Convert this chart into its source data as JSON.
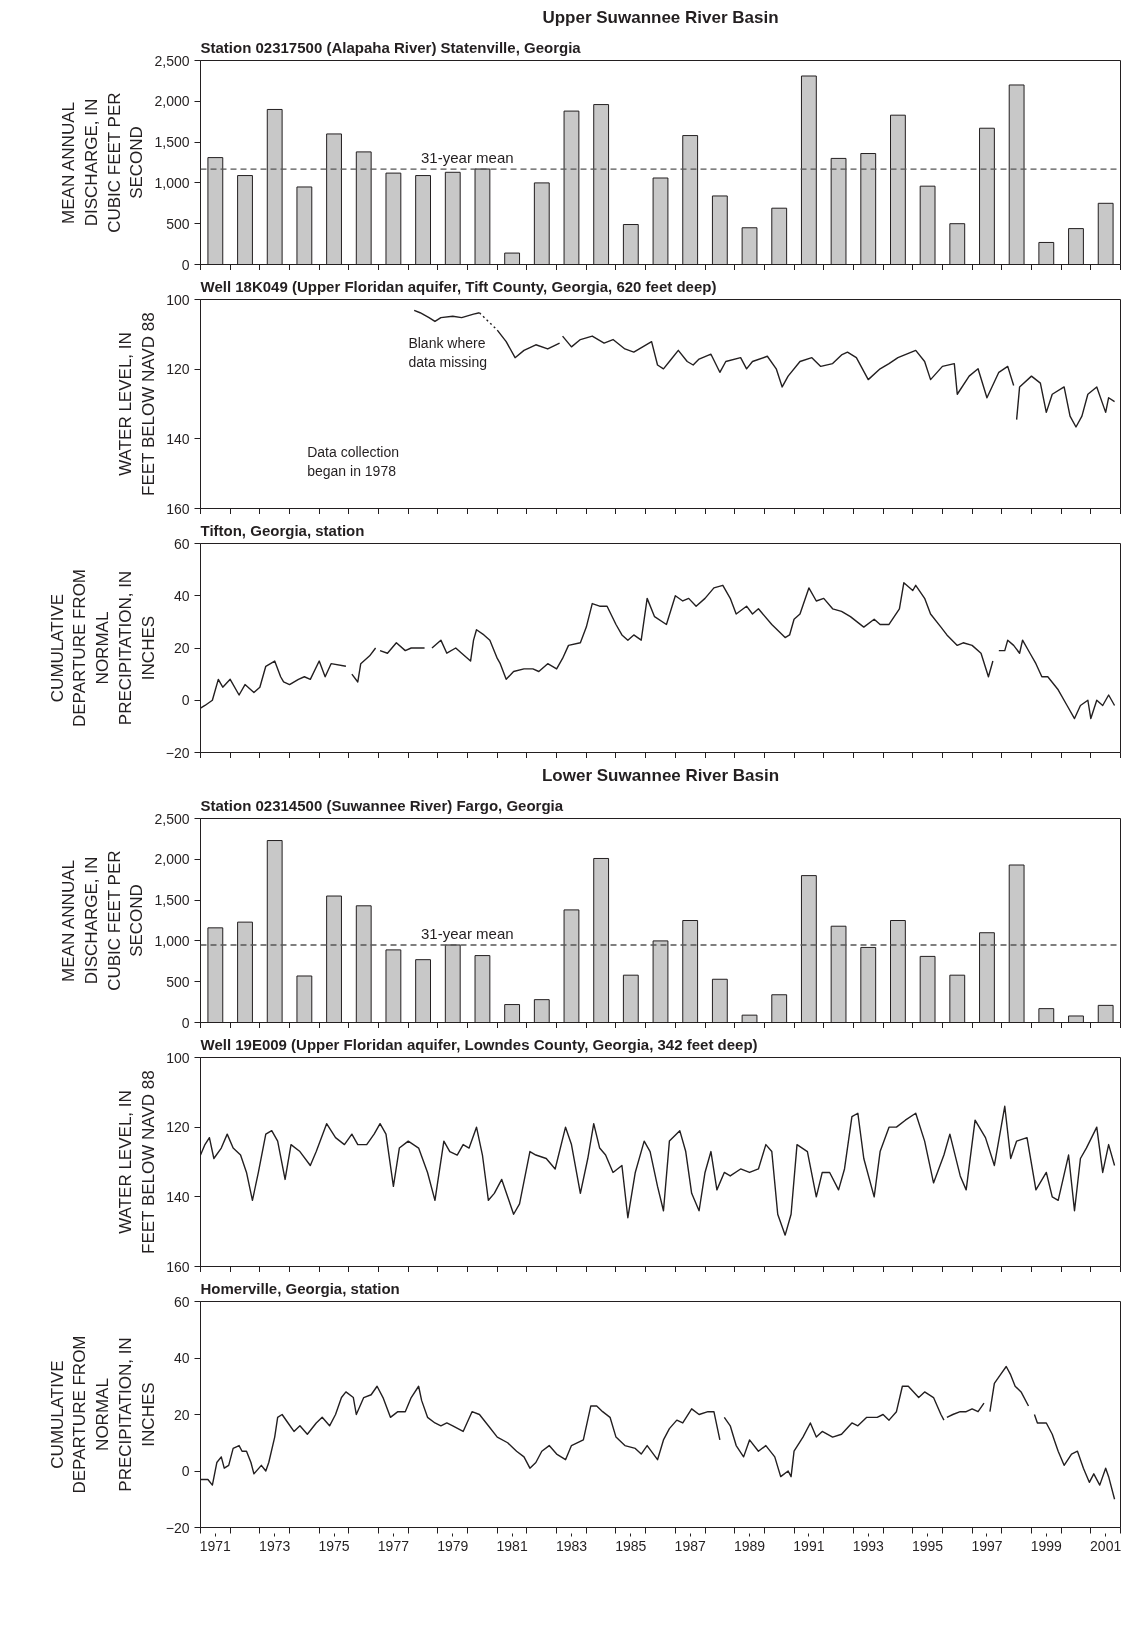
{
  "chart_data": [
    {
      "type": "bar",
      "title": "Upper Suwannee River Basin",
      "subtitle": "Station 02317500 (Alapaha River) Statenville, Georgia",
      "ylabel": "MEAN ANNUAL DISCHARGE, IN CUBIC FEET PER SECOND",
      "color": "#c8c8c8",
      "x": [
        1971,
        1972,
        1973,
        1974,
        1975,
        1976,
        1977,
        1978,
        1979,
        1980,
        1981,
        1982,
        1983,
        1984,
        1985,
        1986,
        1987,
        1988,
        1989,
        1990,
        1991,
        1992,
        1993,
        1994,
        1995,
        1996,
        1997,
        1998,
        1999,
        2000,
        2001
      ],
      "values": [
        1310,
        1090,
        1900,
        950,
        1600,
        1380,
        1120,
        1090,
        1130,
        1170,
        140,
        1000,
        1880,
        1960,
        490,
        1060,
        1580,
        840,
        450,
        690,
        2310,
        1300,
        1360,
        1830,
        960,
        500,
        1670,
        2200,
        270,
        440,
        750
      ],
      "ref_lines": [
        {
          "axis": "y",
          "value": 1170,
          "label": "31-year mean",
          "line_style": "dashed",
          "color": "#555555"
        }
      ],
      "xlim": [
        1970.5,
        2001.5
      ],
      "xticks": [
        {
          "value": 1970.5,
          "label": null
        },
        {
          "value": 1971.5,
          "label": null
        },
        {
          "value": 1972.5,
          "label": null
        },
        {
          "value": 1973.5,
          "label": null
        },
        {
          "value": 1974.5,
          "label": null
        },
        {
          "value": 1975.5,
          "label": null
        },
        {
          "value": 1976.5,
          "label": null
        },
        {
          "value": 1977.5,
          "label": null
        },
        {
          "value": 1978.5,
          "label": null
        },
        {
          "value": 1979.5,
          "label": null
        },
        {
          "value": 1980.5,
          "label": null
        },
        {
          "value": 1981.5,
          "label": null
        },
        {
          "value": 1982.5,
          "label": null
        },
        {
          "value": 1983.5,
          "label": null
        },
        {
          "value": 1984.5,
          "label": null
        },
        {
          "value": 1985.5,
          "label": null
        },
        {
          "value": 1986.5,
          "label": null
        },
        {
          "value": 1987.5,
          "label": null
        },
        {
          "value": 1988.5,
          "label": null
        },
        {
          "value": 1989.5,
          "label": null
        },
        {
          "value": 1990.5,
          "label": null
        },
        {
          "value": 1991.5,
          "label": null
        },
        {
          "value": 1992.5,
          "label": null
        },
        {
          "value": 1993.5,
          "label": null
        },
        {
          "value": 1994.5,
          "label": null
        },
        {
          "value": 1995.5,
          "label": null
        },
        {
          "value": 1996.5,
          "label": null
        },
        {
          "value": 1997.5,
          "label": null
        },
        {
          "value": 1998.5,
          "label": null
        },
        {
          "value": 1999.5,
          "label": null
        },
        {
          "value": 2000.5,
          "label": null
        },
        {
          "value": 2001.5,
          "label": null
        }
      ],
      "ylim": [
        0,
        2500
      ],
      "yticks": [
        0,
        500,
        {
          "value": 1000,
          "label": "1,000"
        },
        {
          "value": 1500,
          "label": "1,500"
        },
        {
          "value": 2000,
          "label": "2,000"
        },
        {
          "value": 2500,
          "label": "2,500"
        }
      ],
      "tick_labels": "y"
    },
    {
      "type": "line",
      "title": "Well 18K049 (Upper Floridan aquifer, Tift County, Georgia, 620 feet deep)",
      "ylabel": "WATER LEVEL, IN FEET BELOW NAVD 88",
      "annotations": [
        "Blank where data missing",
        "Data collection began in 1978"
      ],
      "series": [
        {
          "color": "#231f20",
          "line_style": "solid",
          "x": [
            1977.7,
            1977.9,
            1978.2,
            1978.4,
            1978.6,
            1979.0,
            1979.3,
            1979.7,
            1979.9
          ],
          "values": [
            103.1,
            103.8,
            105.2,
            106.3,
            105.2,
            104.8,
            105.2,
            104.2,
            103.8
          ]
        },
        {
          "color": "#231f20",
          "line_style": "solid",
          "x": [
            1980.5,
            1980.8,
            1981.1,
            1981.4,
            1981.8,
            1982.2,
            1982.6
          ],
          "values": [
            108.8,
            112.1,
            116.7,
            114.6,
            113.0,
            114.2,
            112.5
          ]
        },
        {
          "color": "#231f20",
          "line_style": "solid",
          "x": [
            1982.7,
            1983.0,
            1983.3,
            1983.7,
            1984.1,
            1984.4,
            1984.8,
            1985.1,
            1985.7,
            1985.9,
            1986.1,
            1986.3,
            1986.6,
            1986.9,
            1987.1,
            1987.3,
            1987.7,
            1988.0,
            1988.2,
            1988.7,
            1988.9,
            1989.1,
            1989.6,
            1989.9,
            1990.1,
            1990.3,
            1990.7,
            1991.1,
            1991.4,
            1991.8,
            1992.1,
            1992.3,
            1992.6,
            1993.0,
            1993.4,
            1993.7,
            1994.0,
            1994.6,
            1994.9,
            1995.1,
            1995.5,
            1995.9,
            1996.0,
            1996.4,
            1996.7,
            1997.0,
            1997.4,
            1997.7,
            1997.9
          ],
          "values": [
            110.5,
            113.6,
            111.5,
            110.5,
            112.5,
            111.5,
            114.2,
            115.1,
            112.1,
            118.8,
            119.9,
            117.8,
            114.6,
            117.8,
            118.8,
            117.1,
            115.7,
            120.9,
            117.8,
            116.7,
            119.9,
            117.8,
            116.3,
            119.9,
            125.1,
            122.0,
            117.8,
            116.7,
            119.2,
            118.4,
            115.9,
            115.1,
            116.7,
            123.0,
            119.9,
            118.4,
            116.7,
            114.6,
            117.8,
            123.0,
            119.2,
            118.4,
            127.2,
            122.0,
            119.9,
            128.2,
            120.9,
            119.2,
            124.7
          ]
        },
        {
          "color": "#231f20",
          "line_style": "solid",
          "x": [
            1998.0,
            1998.1,
            1998.5,
            1998.8,
            1999.0,
            1999.2,
            1999.6,
            1999.8,
            2000.0,
            2000.2,
            2000.4,
            2000.7,
            2001.0,
            2001.1,
            2001.3
          ],
          "values": [
            134.5,
            125.1,
            122.0,
            124.0,
            132.4,
            127.2,
            125.1,
            133.5,
            136.6,
            133.5,
            127.2,
            125.1,
            132.4,
            128.2,
            129.3
          ]
        },
        {
          "color": "#231f20",
          "line_style": "dotted",
          "x": [
            1979.9,
            1980.5
          ],
          "values": [
            103.8,
            108.8
          ]
        }
      ],
      "xlim": [
        1970.5,
        2001.5
      ],
      "xticks": [
        {
          "value": 1970.5,
          "label": null
        },
        {
          "value": 1971.5,
          "label": null
        },
        {
          "value": 1972.5,
          "label": null
        },
        {
          "value": 1973.5,
          "label": null
        },
        {
          "value": 1974.5,
          "label": null
        },
        {
          "value": 1975.5,
          "label": null
        },
        {
          "value": 1976.5,
          "label": null
        },
        {
          "value": 1977.5,
          "label": null
        },
        {
          "value": 1978.5,
          "label": null
        },
        {
          "value": 1979.5,
          "label": null
        },
        {
          "value": 1980.5,
          "label": null
        },
        {
          "value": 1981.5,
          "label": null
        },
        {
          "value": 1982.5,
          "label": null
        },
        {
          "value": 1983.5,
          "label": null
        },
        {
          "value": 1984.5,
          "label": null
        },
        {
          "value": 1985.5,
          "label": null
        },
        {
          "value": 1986.5,
          "label": null
        },
        {
          "value": 1987.5,
          "label": null
        },
        {
          "value": 1988.5,
          "label": null
        },
        {
          "value": 1989.5,
          "label": null
        },
        {
          "value": 1990.5,
          "label": null
        },
        {
          "value": 1991.5,
          "label": null
        },
        {
          "value": 1992.5,
          "label": null
        },
        {
          "value": 1993.5,
          "label": null
        },
        {
          "value": 1994.5,
          "label": null
        },
        {
          "value": 1995.5,
          "label": null
        },
        {
          "value": 1996.5,
          "label": null
        },
        {
          "value": 1997.5,
          "label": null
        },
        {
          "value": 1998.5,
          "label": null
        },
        {
          "value": 1999.5,
          "label": null
        },
        {
          "value": 2000.5,
          "label": null
        },
        {
          "value": 2001.5,
          "label": null
        }
      ],
      "ylim": [
        160,
        100
      ],
      "yticks": [
        100,
        120,
        140,
        160
      ],
      "tick_labels": "y"
    },
    {
      "type": "line",
      "title": "Tifton, Georgia, station",
      "ylabel": "CUMULATIVE DEPARTURE FROM NORMAL PRECIPITATION, IN INCHES",
      "series": [
        {
          "color": "#231f20",
          "line_style": "solid",
          "x": [
            1970.5,
            1970.65,
            1970.9,
            1971.1,
            1971.25,
            1971.5,
            1971.8,
            1972.0,
            1972.3,
            1972.5,
            1972.7,
            1973.0,
            1973.2,
            1973.3,
            1973.5,
            1973.8,
            1974.0,
            1974.2,
            1974.5,
            1974.7,
            1974.9,
            1975.4
          ],
          "values": [
            -3,
            -2,
            0,
            8,
            5,
            8,
            2,
            6,
            3,
            5,
            13,
            15,
            9,
            7,
            6,
            8,
            9,
            8,
            15,
            9,
            14,
            13
          ]
        },
        {
          "color": "#231f20",
          "line_style": "solid",
          "x": [
            1975.6,
            1975.8,
            1975.9,
            1976.2,
            1976.4
          ],
          "values": [
            10,
            7,
            14,
            17,
            20
          ]
        },
        {
          "color": "#231f20",
          "line_style": "solid",
          "x": [
            1976.55,
            1976.8,
            1977.1,
            1977.4,
            1977.6,
            1978.05
          ],
          "values": [
            19,
            18,
            22,
            19,
            20,
            20
          ]
        },
        {
          "color": "#231f20",
          "line_style": "solid",
          "x": [
            1978.3,
            1978.6,
            1978.8,
            1979.1,
            1979.3,
            1979.6,
            1979.7,
            1979.8,
            1980.05,
            1980.25,
            1980.5,
            1980.6,
            1980.8,
            1981.05,
            1981.4,
            1981.7,
            1981.9,
            1982.2,
            1982.5,
            1982.7,
            1982.9,
            1983.3,
            1983.5,
            1983.7,
            1983.95,
            1984.2,
            1984.5,
            1984.7,
            1984.9,
            1985.1,
            1985.35,
            1985.55,
            1985.8,
            1986.2,
            1986.5,
            1986.75,
            1986.95,
            1987.2,
            1987.5,
            1987.8,
            1988.1,
            1988.35,
            1988.55,
            1988.9,
            1989.1,
            1989.3,
            1989.75,
            1990.2,
            1990.35,
            1990.5,
            1990.7,
            1991.0,
            1991.25,
            1991.5,
            1991.8,
            1992.1,
            1992.4,
            1992.85,
            1993.2,
            1993.4,
            1993.7,
            1994.05,
            1994.2,
            1994.5,
            1994.6,
            1994.9,
            1995.1,
            1995.45,
            1995.65,
            1996.0,
            1996.2,
            1996.5,
            1996.8,
            1997.05,
            1997.2
          ],
          "values": [
            20,
            23,
            18,
            20,
            18,
            15,
            23,
            27,
            25,
            23,
            16,
            14,
            8,
            11,
            12,
            12,
            11,
            14,
            12,
            16,
            21,
            22,
            28,
            37,
            36,
            36,
            29,
            25,
            23,
            25,
            23,
            39,
            32,
            29,
            40,
            38,
            39,
            36,
            39,
            43,
            44,
            39,
            33,
            36,
            33,
            35,
            29,
            24,
            25,
            31,
            33,
            43,
            38,
            39,
            35,
            34,
            32,
            28,
            31,
            29,
            29,
            35,
            45,
            42,
            44,
            39,
            33,
            28,
            25,
            21,
            22,
            21,
            18,
            9,
            15
          ]
        },
        {
          "color": "#231f20",
          "line_style": "solid",
          "x": [
            1997.4,
            1997.6,
            1997.7,
            1997.9,
            1998.1,
            1998.2,
            1998.45,
            1998.65,
            1998.85,
            1999.05,
            1999.4,
            1999.7,
            1999.95,
            2000.15,
            2000.4,
            2000.5,
            2000.7,
            2000.9,
            2001.1,
            2001.3
          ],
          "values": [
            19,
            19,
            23,
            21,
            18,
            23,
            18,
            14,
            9,
            9,
            4,
            -2,
            -7,
            -2,
            0,
            -7,
            0,
            -2,
            2,
            -2
          ]
        }
      ],
      "xlim": [
        1970.5,
        2001.5
      ],
      "xticks": [
        {
          "value": 1970.5,
          "label": null
        },
        {
          "value": 1971.5,
          "label": null
        },
        {
          "value": 1972.5,
          "label": null
        },
        {
          "value": 1973.5,
          "label": null
        },
        {
          "value": 1974.5,
          "label": null
        },
        {
          "value": 1975.5,
          "label": null
        },
        {
          "value": 1976.5,
          "label": null
        },
        {
          "value": 1977.5,
          "label": null
        },
        {
          "value": 1978.5,
          "label": null
        },
        {
          "value": 1979.5,
          "label": null
        },
        {
          "value": 1980.5,
          "label": null
        },
        {
          "value": 1981.5,
          "label": null
        },
        {
          "value": 1982.5,
          "label": null
        },
        {
          "value": 1983.5,
          "label": null
        },
        {
          "value": 1984.5,
          "label": null
        },
        {
          "value": 1985.5,
          "label": null
        },
        {
          "value": 1986.5,
          "label": null
        },
        {
          "value": 1987.5,
          "label": null
        },
        {
          "value": 1988.5,
          "label": null
        },
        {
          "value": 1989.5,
          "label": null
        },
        {
          "value": 1990.5,
          "label": null
        },
        {
          "value": 1991.5,
          "label": null
        },
        {
          "value": 1992.5,
          "label": null
        },
        {
          "value": 1993.5,
          "label": null
        },
        {
          "value": 1994.5,
          "label": null
        },
        {
          "value": 1995.5,
          "label": null
        },
        {
          "value": 1996.5,
          "label": null
        },
        {
          "value": 1997.5,
          "label": null
        },
        {
          "value": 1998.5,
          "label": null
        },
        {
          "value": 1999.5,
          "label": null
        },
        {
          "value": 2000.5,
          "label": null
        },
        {
          "value": 2001.5,
          "label": null
        }
      ],
      "ylim": [
        -20,
        60
      ],
      "yticks": [
        {
          "value": -20,
          "label": "−20"
        },
        0,
        20,
        40,
        60
      ],
      "tick_labels": "y"
    },
    {
      "type": "bar",
      "title": "Lower Suwannee River Basin",
      "subtitle": "Station 02314500 (Suwannee River) Fargo, Georgia",
      "ylabel": "MEAN ANNUAL DISCHARGE, IN CUBIC FEET PER SECOND",
      "color": "#c8c8c8",
      "x": [
        1971,
        1972,
        1973,
        1974,
        1975,
        1976,
        1977,
        1978,
        1979,
        1980,
        1981,
        1982,
        1983,
        1984,
        1985,
        1986,
        1987,
        1988,
        1989,
        1990,
        1991,
        1992,
        1993,
        1994,
        1995,
        1996,
        1997,
        1998,
        1999,
        2000,
        2001
      ],
      "values": [
        1160,
        1230,
        2230,
        570,
        1550,
        1430,
        890,
        770,
        950,
        820,
        220,
        280,
        1380,
        2010,
        580,
        1000,
        1250,
        530,
        90,
        340,
        1800,
        1180,
        920,
        1250,
        810,
        580,
        1100,
        1930,
        170,
        80,
        210
      ],
      "ref_lines": [
        {
          "axis": "y",
          "value": 950,
          "label": "31-year mean",
          "line_style": "dashed",
          "color": "#555555"
        }
      ],
      "xlim": [
        1970.5,
        2001.5
      ],
      "xticks": [
        {
          "value": 1970.5,
          "label": null
        },
        {
          "value": 1971.5,
          "label": null
        },
        {
          "value": 1972.5,
          "label": null
        },
        {
          "value": 1973.5,
          "label": null
        },
        {
          "value": 1974.5,
          "label": null
        },
        {
          "value": 1975.5,
          "label": null
        },
        {
          "value": 1976.5,
          "label": null
        },
        {
          "value": 1977.5,
          "label": null
        },
        {
          "value": 1978.5,
          "label": null
        },
        {
          "value": 1979.5,
          "label": null
        },
        {
          "value": 1980.5,
          "label": null
        },
        {
          "value": 1981.5,
          "label": null
        },
        {
          "value": 1982.5,
          "label": null
        },
        {
          "value": 1983.5,
          "label": null
        },
        {
          "value": 1984.5,
          "label": null
        },
        {
          "value": 1985.5,
          "label": null
        },
        {
          "value": 1986.5,
          "label": null
        },
        {
          "value": 1987.5,
          "label": null
        },
        {
          "value": 1988.5,
          "label": null
        },
        {
          "value": 1989.5,
          "label": null
        },
        {
          "value": 1990.5,
          "label": null
        },
        {
          "value": 1991.5,
          "label": null
        },
        {
          "value": 1992.5,
          "label": null
        },
        {
          "value": 1993.5,
          "label": null
        },
        {
          "value": 1994.5,
          "label": null
        },
        {
          "value": 1995.5,
          "label": null
        },
        {
          "value": 1996.5,
          "label": null
        },
        {
          "value": 1997.5,
          "label": null
        },
        {
          "value": 1998.5,
          "label": null
        },
        {
          "value": 1999.5,
          "label": null
        },
        {
          "value": 2000.5,
          "label": null
        },
        {
          "value": 2001.5,
          "label": null
        }
      ],
      "ylim": [
        0,
        2500
      ],
      "yticks": [
        0,
        500,
        {
          "value": 1000,
          "label": "1,000"
        },
        {
          "value": 1500,
          "label": "1,500"
        },
        {
          "value": 2000,
          "label": "2,000"
        },
        {
          "value": 2500,
          "label": "2,500"
        }
      ],
      "tick_labels": "y"
    },
    {
      "type": "line",
      "title": "Well 19E009 (Upper Floridan aquifer, Lowndes County, Georgia, 342 feet deep)",
      "ylabel": "WATER LEVEL, IN FEET BELOW NAVD 88",
      "series": [
        {
          "color": "#231f20",
          "line_style": "solid",
          "x": [
            1970.5,
            1970.65,
            1970.8,
            1970.95,
            1971.2,
            1971.4,
            1971.6,
            1971.85,
            1972.05,
            1972.25,
            1972.45,
            1972.7,
            1972.9,
            1973.1,
            1973.35,
            1973.55,
            1973.85,
            1974.2,
            1974.4,
            1974.75,
            1975.05,
            1975.35,
            1975.6,
            1975.8,
            1976.1,
            1976.35,
            1976.55,
            1976.75,
            1977.0,
            1977.2,
            1977.5,
            1977.85,
            1978.15,
            1978.4,
            1978.7,
            1978.9,
            1979.15,
            1979.35,
            1979.55,
            1979.8,
            1980.0,
            1980.2,
            1980.4,
            1980.65,
            1980.85,
            1981.05,
            1981.25,
            1981.6,
            1981.8,
            1982.15,
            1982.45,
            1982.8,
            1983.0,
            1983.3,
            1983.55,
            1983.75,
            1983.95,
            1984.15,
            1984.4,
            1984.7,
            1984.9,
            1985.15,
            1985.45,
            1985.65,
            1985.9,
            1986.1,
            1986.3,
            1986.65,
            1986.85,
            1987.05,
            1987.3,
            1987.5,
            1987.7,
            1987.9,
            1988.15,
            1988.35,
            1988.7,
            1989.0,
            1989.3,
            1989.55,
            1989.75,
            1989.95,
            1990.2,
            1990.4,
            1990.6,
            1990.95,
            1991.25,
            1991.45,
            1991.7,
            1992.0,
            1992.2,
            1992.45,
            1992.65,
            1992.85,
            1993.2,
            1993.4,
            1993.7,
            1993.95,
            1994.25,
            1994.6,
            1994.9,
            1995.2,
            1995.55,
            1995.75,
            1996.1,
            1996.3,
            1996.6,
            1996.95,
            1997.25,
            1997.6,
            1997.8,
            1998.0,
            1998.35,
            1998.65,
            1999.0,
            1999.2,
            1999.4,
            1999.75,
            1999.95,
            2000.15,
            2000.35,
            2000.7,
            2000.9,
            2001.1,
            2001.3
          ],
          "values": [
            128,
            125,
            123,
            129,
            126,
            122,
            126,
            128,
            133,
            141,
            133,
            122,
            121,
            124,
            135,
            125,
            127,
            131,
            127,
            119,
            123,
            125,
            122,
            125,
            125,
            122,
            119,
            122,
            137,
            126,
            124,
            126,
            133,
            141,
            124,
            127,
            128,
            125,
            126,
            120,
            128,
            141,
            139,
            135,
            140,
            145,
            142,
            127,
            128,
            129,
            132,
            120,
            125,
            139,
            129,
            119,
            126,
            128,
            133,
            131,
            146,
            133,
            124,
            127,
            137,
            144,
            124,
            121,
            127,
            139,
            144,
            133,
            127,
            138,
            133,
            134,
            132,
            133,
            132,
            125,
            127,
            145,
            151,
            145,
            125,
            127,
            140,
            133,
            133,
            138,
            132,
            117,
            116,
            129,
            140,
            127,
            120,
            120,
            118,
            116,
            124,
            136,
            128,
            122,
            134,
            138,
            118,
            123,
            131,
            114,
            129,
            124,
            123,
            138,
            133,
            140,
            141,
            128,
            144,
            129,
            126,
            120,
            133,
            125,
            131
          ]
        }
      ],
      "xlim": [
        1970.5,
        2001.5
      ],
      "xticks": [
        {
          "value": 1970.5,
          "label": null
        },
        {
          "value": 1971.5,
          "label": null
        },
        {
          "value": 1972.5,
          "label": null
        },
        {
          "value": 1973.5,
          "label": null
        },
        {
          "value": 1974.5,
          "label": null
        },
        {
          "value": 1975.5,
          "label": null
        },
        {
          "value": 1976.5,
          "label": null
        },
        {
          "value": 1977.5,
          "label": null
        },
        {
          "value": 1978.5,
          "label": null
        },
        {
          "value": 1979.5,
          "label": null
        },
        {
          "value": 1980.5,
          "label": null
        },
        {
          "value": 1981.5,
          "label": null
        },
        {
          "value": 1982.5,
          "label": null
        },
        {
          "value": 1983.5,
          "label": null
        },
        {
          "value": 1984.5,
          "label": null
        },
        {
          "value": 1985.5,
          "label": null
        },
        {
          "value": 1986.5,
          "label": null
        },
        {
          "value": 1987.5,
          "label": null
        },
        {
          "value": 1988.5,
          "label": null
        },
        {
          "value": 1989.5,
          "label": null
        },
        {
          "value": 1990.5,
          "label": null
        },
        {
          "value": 1991.5,
          "label": null
        },
        {
          "value": 1992.5,
          "label": null
        },
        {
          "value": 1993.5,
          "label": null
        },
        {
          "value": 1994.5,
          "label": null
        },
        {
          "value": 1995.5,
          "label": null
        },
        {
          "value": 1996.5,
          "label": null
        },
        {
          "value": 1997.5,
          "label": null
        },
        {
          "value": 1998.5,
          "label": null
        },
        {
          "value": 1999.5,
          "label": null
        },
        {
          "value": 2000.5,
          "label": null
        },
        {
          "value": 2001.5,
          "label": null
        }
      ],
      "ylim": [
        160,
        100
      ],
      "yticks": [
        100,
        120,
        140,
        160
      ],
      "tick_labels": "y"
    },
    {
      "type": "line",
      "title": "Homerville, Georgia, station",
      "ylabel": "CUMULATIVE DEPARTURE FROM NORMAL PRECIPITATION, IN INCHES",
      "series": [
        {
          "color": "#231f20",
          "line_style": "solid",
          "x": [
            1970.5,
            1970.75,
            1970.9,
            1971.05,
            1971.2,
            1971.3,
            1971.45,
            1971.6,
            1971.8,
            1971.9,
            1972.05,
            1972.2,
            1972.3,
            1972.55,
            1972.7,
            1972.8,
            1973.0,
            1973.1,
            1973.25,
            1973.45,
            1973.65,
            1973.85,
            1974.1,
            1974.4,
            1974.6,
            1974.85,
            1975.05,
            1975.25,
            1975.4,
            1975.65,
            1975.75,
            1976.0,
            1976.25,
            1976.45,
            1976.65,
            1976.9,
            1977.15,
            1977.4,
            1977.6,
            1977.85,
            1977.95,
            1978.15,
            1978.4,
            1978.6,
            1978.8,
            1979.0,
            1979.35,
            1979.65,
            1979.9,
            1980.2,
            1980.5,
            1980.85,
            1981.15,
            1981.4,
            1981.6,
            1981.8,
            1982.0,
            1982.25,
            1982.5,
            1982.8,
            1983.0,
            1983.4,
            1983.65,
            1983.85,
            1984.05,
            1984.3,
            1984.5,
            1984.8,
            1985.15,
            1985.35,
            1985.55,
            1985.9,
            1986.1,
            1986.3,
            1986.55,
            1986.75,
            1987.05,
            1987.3,
            1987.6,
            1987.8,
            1988.0
          ],
          "values": [
            -3,
            -3,
            -5,
            3,
            5,
            1,
            2,
            8,
            9,
            7,
            7,
            3,
            -1,
            2,
            0,
            3,
            12,
            19,
            20,
            17,
            14,
            16,
            13,
            17,
            19,
            16,
            20,
            26,
            28,
            26,
            20,
            26,
            27,
            30,
            26,
            19,
            21,
            21,
            26,
            30,
            25,
            19,
            17,
            16,
            17,
            16,
            14,
            21,
            20,
            16,
            12,
            10,
            7,
            5,
            1,
            3,
            7,
            9,
            6,
            4,
            9,
            11,
            23,
            23,
            21,
            19,
            12,
            9,
            8,
            6,
            9,
            4,
            11,
            15,
            18,
            17,
            22,
            20,
            21,
            21,
            11
          ]
        },
        {
          "color": "#231f20",
          "line_style": "solid",
          "x": [
            1988.15,
            1988.35,
            1988.55,
            1988.8,
            1989.0,
            1989.3,
            1989.55,
            1989.85,
            1990.05,
            1990.3,
            1990.4,
            1990.5,
            1990.8,
            1991.05,
            1991.25,
            1991.45,
            1991.8,
            1992.1,
            1992.45,
            1992.65,
            1992.95,
            1993.3,
            1993.5,
            1993.7,
            1993.95,
            1994.15,
            1994.35,
            1994.7,
            1994.9,
            1995.2,
            1995.45,
            1995.55
          ],
          "values": [
            19,
            16,
            9,
            5,
            11,
            7,
            9,
            5,
            -2,
            0,
            -2,
            7,
            12,
            17,
            12,
            14,
            12,
            13,
            17,
            16,
            19,
            19,
            20,
            18,
            21,
            30,
            30,
            26,
            28,
            26,
            20,
            18
          ]
        },
        {
          "color": "#231f20",
          "line_style": "solid",
          "x": [
            1995.65,
            1995.85,
            1996.1,
            1996.3,
            1996.5,
            1996.7,
            1996.9
          ],
          "values": [
            19,
            20,
            21,
            21,
            22,
            21,
            24
          ]
        },
        {
          "color": "#231f20",
          "line_style": "solid",
          "x": [
            1997.1,
            1997.25,
            1997.45,
            1997.65,
            1997.8,
            1997.95,
            1998.15,
            1998.4
          ],
          "values": [
            21,
            31,
            34,
            37,
            34,
            30,
            28,
            23
          ]
        },
        {
          "color": "#231f20",
          "line_style": "solid",
          "x": [
            1998.6,
            1998.7,
            1999.0,
            1999.2,
            1999.4,
            1999.6,
            1999.85,
            2000.05,
            2000.25,
            2000.45,
            2000.6,
            2000.8,
            2001.0,
            2001.1,
            2001.3
          ],
          "values": [
            20,
            17,
            17,
            13,
            7,
            2,
            6,
            7,
            1,
            -4,
            -1,
            -5,
            1,
            -2,
            -10
          ]
        }
      ],
      "xlim": [
        1970.5,
        2001.5
      ],
      "xticks": [
        {
          "value": 1970.5,
          "label": null
        },
        {
          "value": 1971.5,
          "label": null
        },
        {
          "value": 1972.5,
          "label": null
        },
        {
          "value": 1973.5,
          "label": null
        },
        {
          "value": 1974.5,
          "label": null
        },
        {
          "value": 1975.5,
          "label": null
        },
        {
          "value": 1976.5,
          "label": null
        },
        {
          "value": 1977.5,
          "label": null
        },
        {
          "value": 1978.5,
          "label": null
        },
        {
          "value": 1979.5,
          "label": null
        },
        {
          "value": 1980.5,
          "label": null
        },
        {
          "value": 1981.5,
          "label": null
        },
        {
          "value": 1982.5,
          "label": null
        },
        {
          "value": 1983.5,
          "label": null
        },
        {
          "value": 1984.5,
          "label": null
        },
        {
          "value": 1985.5,
          "label": null
        },
        {
          "value": 1986.5,
          "label": null
        },
        {
          "value": 1987.5,
          "label": null
        },
        {
          "value": 1988.5,
          "label": null
        },
        {
          "value": 1989.5,
          "label": null
        },
        {
          "value": 1990.5,
          "label": null
        },
        {
          "value": 1991.5,
          "label": null
        },
        {
          "value": 1992.5,
          "label": null
        },
        {
          "value": 1993.5,
          "label": null
        },
        {
          "value": 1994.5,
          "label": null
        },
        {
          "value": 1995.5,
          "label": null
        },
        {
          "value": 1996.5,
          "label": null
        },
        {
          "value": 1997.5,
          "label": null
        },
        {
          "value": 1998.5,
          "label": null
        },
        {
          "value": 1999.5,
          "label": null
        },
        {
          "value": 2000.5,
          "label": null
        },
        {
          "value": 2001.5,
          "label": null
        },
        1971,
        1973,
        1975,
        1977,
        1979,
        1981,
        1983,
        1985,
        1987,
        1989,
        1991,
        1993,
        1995,
        1997,
        1999,
        2001
      ],
      "ylim": [
        -20,
        60
      ],
      "yticks": [
        {
          "value": -20,
          "label": "−20"
        },
        0,
        20,
        40,
        60
      ]
    }
  ]
}
